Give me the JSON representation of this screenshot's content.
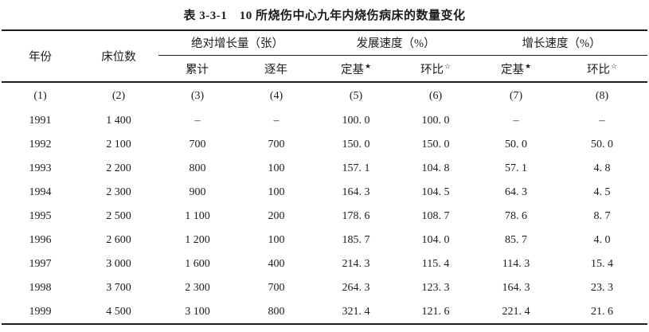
{
  "title": "表 3-3-1　10 所烧伤中心九年内烧伤病床的数量变化",
  "table": {
    "header": {
      "year": "年份",
      "beds": "床位数",
      "groups": [
        {
          "label": "绝对增长量（张）"
        },
        {
          "label": "发展速度（%）"
        },
        {
          "label": "增长速度（%）"
        }
      ],
      "subs": [
        {
          "label": "累计",
          "star": ""
        },
        {
          "label": "逐年",
          "star": ""
        },
        {
          "label": "定基",
          "star": "★"
        },
        {
          "label": "环比",
          "star": "☆"
        },
        {
          "label": "定基",
          "star": "★"
        },
        {
          "label": "环比",
          "star": "☆"
        }
      ]
    },
    "col_numbers": [
      "(1)",
      "(2)",
      "(3)",
      "(4)",
      "(5)",
      "(6)",
      "(7)",
      "(8)"
    ],
    "rows": [
      [
        "1991",
        "1 400",
        "–",
        "–",
        "100. 0",
        "100. 0",
        "–",
        "–"
      ],
      [
        "1992",
        "2 100",
        "700",
        "700",
        "150. 0",
        "150. 0",
        "50. 0",
        "50. 0"
      ],
      [
        "1993",
        "2 200",
        "800",
        "100",
        "157. 1",
        "104. 8",
        "57. 1",
        "4. 8"
      ],
      [
        "1994",
        "2 300",
        "900",
        "100",
        "164. 3",
        "104. 5",
        "64. 3",
        "4. 5"
      ],
      [
        "1995",
        "2 500",
        "1 100",
        "200",
        "178. 6",
        "108. 7",
        "78. 6",
        "8. 7"
      ],
      [
        "1996",
        "2 600",
        "1 200",
        "100",
        "185. 7",
        "104. 0",
        "85. 7",
        "4. 0"
      ],
      [
        "1997",
        "3 000",
        "1 600",
        "400",
        "214. 3",
        "115. 4",
        "114. 3",
        "15. 4"
      ],
      [
        "1998",
        "3 700",
        "2 300",
        "700",
        "264. 3",
        "123. 3",
        "164. 3",
        "23. 3"
      ],
      [
        "1999",
        "4 500",
        "3 100",
        "800",
        "321. 4",
        "121. 6",
        "221. 4",
        "21. 6"
      ]
    ]
  }
}
